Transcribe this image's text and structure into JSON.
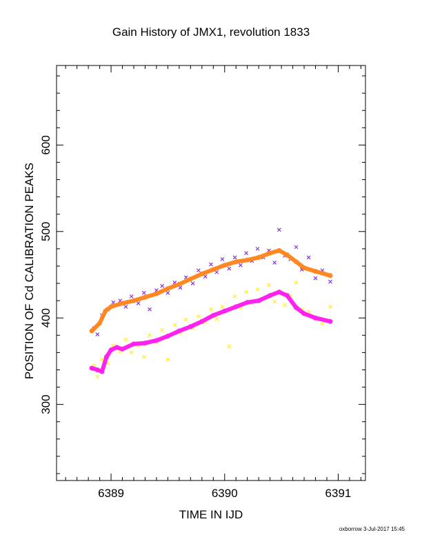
{
  "chart_data": {
    "type": "scatter",
    "title": "Gain History of JMX1, revolution 1833",
    "xlabel": "TIME IN IJD",
    "ylabel": "POSITION OF Cd CALIBRATION PEAKS",
    "xlim": [
      6388.52,
      6391.24
    ],
    "ylim": [
      212,
      692
    ],
    "x_ticks": [
      6389,
      6390,
      6391
    ],
    "y_ticks": [
      300,
      400,
      500,
      600
    ],
    "grid": false,
    "legend": "none",
    "series": [
      {
        "marker": "x",
        "color": "#8833dd",
        "x": [
          6388.85,
          6388.88,
          6388.92,
          6388.97,
          6389.02,
          6389.08,
          6389.13,
          6389.18,
          6389.24,
          6389.29,
          6389.34,
          6389.4,
          6389.45,
          6389.5,
          6389.56,
          6389.61,
          6389.66,
          6389.72,
          6389.77,
          6389.83,
          6389.88,
          6389.93,
          6389.98,
          6390.04,
          6390.09,
          6390.14,
          6390.19,
          6390.24,
          6390.29,
          6390.34,
          6390.39,
          6390.44,
          6390.48,
          6390.53,
          6390.58,
          6390.63,
          6390.68,
          6390.74,
          6390.8,
          6390.86,
          6390.93
        ],
        "y": [
          388,
          381,
          403,
          410,
          418,
          420,
          413,
          425,
          417,
          429,
          410,
          432,
          437,
          429,
          441,
          435,
          447,
          440,
          455,
          448,
          462,
          453,
          468,
          457,
          470,
          461,
          475,
          466,
          480,
          470,
          478,
          464,
          502,
          472,
          468,
          482,
          456,
          470,
          446,
          455,
          442
        ]
      },
      {
        "marker": "x",
        "color": "#ffee22",
        "x": [
          6388.85,
          6388.88,
          6388.92,
          6388.97,
          6389.02,
          6389.08,
          6389.13,
          6389.18,
          6389.24,
          6389.29,
          6389.34,
          6389.4,
          6389.45,
          6389.5,
          6389.56,
          6389.61,
          6389.66,
          6389.72,
          6389.77,
          6389.83,
          6389.88,
          6389.93,
          6389.98,
          6390.04,
          6390.09,
          6390.14,
          6390.19,
          6390.24,
          6390.29,
          6390.34,
          6390.39,
          6390.44,
          6390.48,
          6390.53,
          6390.58,
          6390.63,
          6390.68,
          6390.74,
          6390.8,
          6390.86,
          6390.93
        ],
        "y": [
          345,
          332,
          352,
          348,
          368,
          361,
          375,
          360,
          368,
          355,
          380,
          372,
          386,
          352,
          392,
          383,
          398,
          388,
          402,
          395,
          410,
          399,
          413,
          367,
          425,
          412,
          430,
          419,
          433,
          422,
          438,
          419,
          430,
          415,
          425,
          441,
          410,
          407,
          398,
          393,
          413
        ]
      },
      {
        "marker": "dot",
        "color": "#ff8822",
        "x": [
          6388.83,
          6388.9,
          6388.95,
          6389.0,
          6389.1,
          6389.2,
          6389.3,
          6389.4,
          6389.5,
          6389.6,
          6389.7,
          6389.8,
          6389.9,
          6390.0,
          6390.1,
          6390.2,
          6390.3,
          6390.4,
          6390.48,
          6390.55,
          6390.63,
          6390.7,
          6390.8,
          6390.93
        ],
        "y": [
          385,
          394,
          408,
          413,
          417,
          420,
          424,
          428,
          434,
          439,
          445,
          451,
          456,
          461,
          465,
          467,
          470,
          475,
          478,
          473,
          465,
          458,
          454,
          449
        ]
      },
      {
        "marker": "dot",
        "color": "#ff22ee",
        "x": [
          6388.83,
          6388.88,
          6388.92,
          6388.96,
          6389.0,
          6389.05,
          6389.1,
          6389.2,
          6389.3,
          6389.4,
          6389.5,
          6389.6,
          6389.7,
          6389.8,
          6389.9,
          6390.0,
          6390.1,
          6390.2,
          6390.3,
          6390.4,
          6390.48,
          6390.55,
          6390.63,
          6390.7,
          6390.8,
          6390.93
        ],
        "y": [
          342,
          340,
          338,
          355,
          363,
          366,
          364,
          370,
          371,
          374,
          379,
          385,
          390,
          396,
          403,
          408,
          413,
          418,
          420,
          426,
          430,
          426,
          412,
          405,
          400,
          396
        ]
      }
    ]
  },
  "footer": "oxborrow  3-Jul-2017 15:45"
}
